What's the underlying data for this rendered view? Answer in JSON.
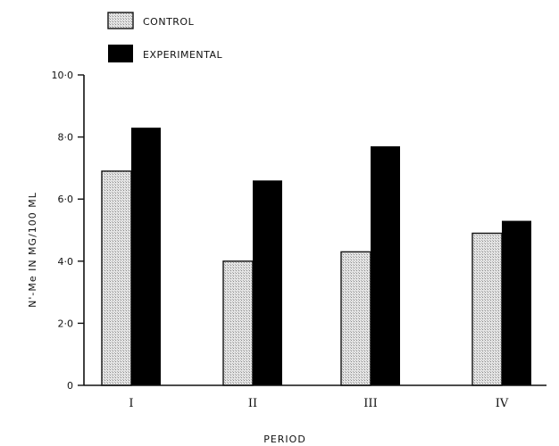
{
  "colors": {
    "control_fill": "#d2d2d2",
    "experimental_fill": "#000000",
    "axis": "#111111"
  },
  "chart_data": {
    "type": "bar",
    "categories": [
      "I",
      "II",
      "III",
      "IV"
    ],
    "series": [
      {
        "name": "CONTROL",
        "values": [
          6.9,
          4.0,
          4.3,
          4.9
        ]
      },
      {
        "name": "EXPERIMENTAL",
        "values": [
          8.3,
          6.6,
          7.7,
          5.3
        ]
      }
    ],
    "xlabel": "PERIOD",
    "ylabel": "N'-Me  IN  MG/100 ML",
    "ylim": [
      0,
      10
    ],
    "yticks": [
      0,
      2,
      4,
      6,
      8,
      10
    ],
    "ytick_labels": [
      "0",
      "2·0",
      "4·0",
      "6·0",
      "8·0",
      "10·0"
    ],
    "legend_position": "top-left",
    "grid": false
  }
}
